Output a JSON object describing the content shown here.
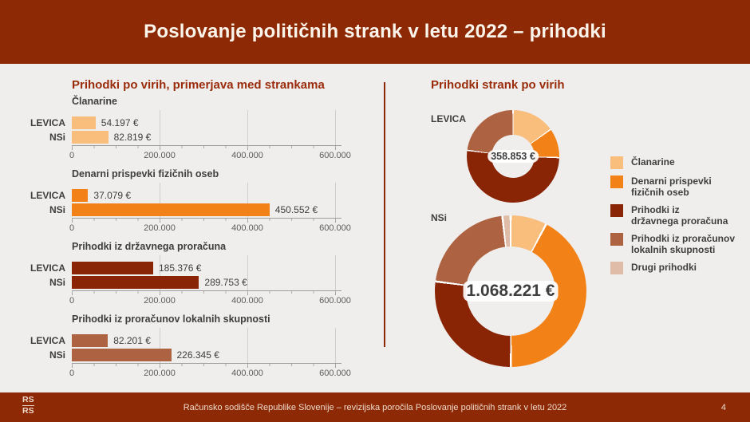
{
  "slide": {
    "title": "Poslovanje političnih strank v letu 2022 – prihodki"
  },
  "sections": {
    "bars_title": "Prihodki po virih, primerjava med strankama",
    "donuts_title": "Prihodki strank po virih"
  },
  "colors": {
    "header_bg": "#8D2A05",
    "accent_red": "#9A2C0B",
    "page_bg": "#EFEEEC",
    "text_dark": "#3E3E3E",
    "clanarine": "#F9BD7C",
    "denarni_prispevki": "#F28118",
    "drzavni_proracun": "#892405",
    "lokalne_skupnosti": "#AD6342",
    "drugi_prihodki": "#DFBCA7"
  },
  "chart_data": [
    {
      "type": "bar",
      "title": "Članarine",
      "color": "#F9BD7C",
      "categories": [
        "LEVICA",
        "NSi"
      ],
      "values": [
        54197,
        82819
      ],
      "value_labels": [
        "54.197 €",
        "82.819 €"
      ],
      "xlim": [
        0,
        600000
      ],
      "xtick_values": [
        0,
        200000,
        400000,
        600000
      ],
      "xtick_labels": [
        "0",
        "200.000",
        "400.000",
        "600.000"
      ]
    },
    {
      "type": "bar",
      "title": "Denarni prispevki fizičnih oseb",
      "color": "#F28118",
      "categories": [
        "LEVICA",
        "NSi"
      ],
      "values": [
        37079,
        450552
      ],
      "value_labels": [
        "37.079 €",
        "450.552 €"
      ],
      "xlim": [
        0,
        600000
      ],
      "xtick_values": [
        0,
        200000,
        400000,
        600000
      ],
      "xtick_labels": [
        "0",
        "200.000",
        "400.000",
        "600.000"
      ]
    },
    {
      "type": "bar",
      "title": "Prihodki iz državnega proračuna",
      "color": "#892405",
      "categories": [
        "LEVICA",
        "NSi"
      ],
      "values": [
        185376,
        289753
      ],
      "value_labels": [
        "185.376 €",
        "289.753 €"
      ],
      "xlim": [
        0,
        600000
      ],
      "xtick_values": [
        0,
        200000,
        400000,
        600000
      ],
      "xtick_labels": [
        "0",
        "200.000",
        "400.000",
        "600.000"
      ]
    },
    {
      "type": "bar",
      "title": "Prihodki iz proračunov lokalnih skupnosti",
      "color": "#AD6342",
      "categories": [
        "LEVICA",
        "NSi"
      ],
      "values": [
        82201,
        226345
      ],
      "value_labels": [
        "82.201 €",
        "226.345 €"
      ],
      "xlim": [
        0,
        600000
      ],
      "xtick_values": [
        0,
        200000,
        400000,
        600000
      ],
      "xtick_labels": [
        "0",
        "200.000",
        "400.000",
        "600.000"
      ]
    },
    {
      "type": "donut",
      "party": "LEVICA",
      "center_label": "358.853 €",
      "total": 358853,
      "segments": [
        {
          "label": "Članarine",
          "value": 54197,
          "color": "#F9BD7C"
        },
        {
          "label": "Denarni prispevki fizičnih oseb",
          "value": 37079,
          "color": "#F28118"
        },
        {
          "label": "Prihodki iz državnega proračuna",
          "value": 185376,
          "color": "#892405"
        },
        {
          "label": "Prihodki iz proračunov lokalnih skupnosti",
          "value": 82201,
          "color": "#AD6342"
        },
        {
          "label": "Drugi prihodki",
          "value": 0,
          "color": "#DFBCA7"
        }
      ]
    },
    {
      "type": "donut",
      "party": "NSi",
      "center_label": "1.068.221 €",
      "total": 1068221,
      "segments": [
        {
          "label": "Članarine",
          "value": 82819,
          "color": "#F9BD7C"
        },
        {
          "label": "Denarni prispevki fizičnih oseb",
          "value": 450552,
          "color": "#F28118"
        },
        {
          "label": "Prihodki iz državnega proračuna",
          "value": 289753,
          "color": "#892405"
        },
        {
          "label": "Prihodki iz proračunov lokalnih skupnosti",
          "value": 226345,
          "color": "#AD6342"
        },
        {
          "label": "Drugi prihodki",
          "value": 18752,
          "color": "#DFBCA7"
        }
      ]
    }
  ],
  "legend": {
    "items": [
      {
        "label": "Članarine",
        "color": "#F9BD7C"
      },
      {
        "label": "Denarni prispevki\nfizičnih oseb",
        "color": "#F28118"
      },
      {
        "label": "Prihodki iz\ndržavnega proračuna",
        "color": "#892405"
      },
      {
        "label": "Prihodki iz proračunov\nlokalnih skupnosti",
        "color": "#AD6342"
      },
      {
        "label": "Drugi prihodki",
        "color": "#DFBCA7"
      }
    ]
  },
  "footer": {
    "logo_line1": "RS",
    "logo_line2": "RS",
    "text": "Računsko sodišče Republike Slovenije – revizijska poročila Poslovanje političnih strank v letu 2022",
    "page_number": "4"
  }
}
